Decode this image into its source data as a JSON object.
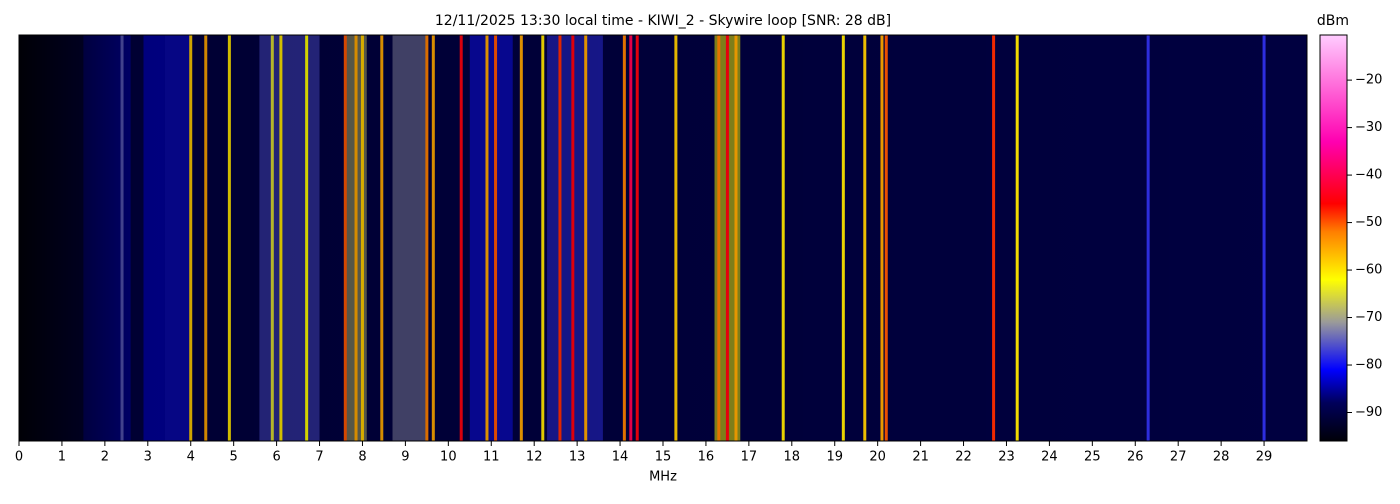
{
  "chart_data": {
    "type": "waterfall",
    "title": "12/11/2025 13:30 local time - KIWI_2 - Skywire loop [SNR: 28 dB]",
    "x_label": "MHz",
    "colorbar_label": "dBm",
    "xlim": [
      0,
      30
    ],
    "xticks": [
      0,
      1,
      2,
      3,
      4,
      5,
      6,
      7,
      8,
      9,
      10,
      11,
      12,
      13,
      14,
      15,
      16,
      17,
      18,
      19,
      20,
      21,
      22,
      23,
      24,
      25,
      26,
      27,
      28,
      29
    ],
    "clim": [
      -96,
      -10.5
    ],
    "cticks": [
      {
        "value": -20,
        "label": "−20"
      },
      {
        "value": -30,
        "label": "−30"
      },
      {
        "value": -40,
        "label": "−40"
      },
      {
        "value": -50,
        "label": "−50"
      },
      {
        "value": -60,
        "label": "−60"
      },
      {
        "value": -70,
        "label": "−70"
      },
      {
        "value": -80,
        "label": "−80"
      },
      {
        "value": -90,
        "label": "−90"
      }
    ],
    "colormap": [
      {
        "value": -96,
        "color": "#000008"
      },
      {
        "value": -88,
        "color": "#00005a"
      },
      {
        "value": -81,
        "color": "#0000ff"
      },
      {
        "value": -71,
        "color": "#9a9a9a"
      },
      {
        "value": -62,
        "color": "#ffff00"
      },
      {
        "value": -52,
        "color": "#ff8000"
      },
      {
        "value": -46,
        "color": "#ff0000"
      },
      {
        "value": -33,
        "color": "#ff00b0"
      },
      {
        "value": -10.5,
        "color": "#ffccff"
      }
    ],
    "bands": {
      "start": [
        1.5,
        2.9,
        3.4,
        5.6,
        7.6,
        8.7,
        10.5,
        12.3,
        16.2
      ],
      "end": [
        2.6,
        3.4,
        4.0,
        7.0,
        8.1,
        9.5,
        11.5,
        13.6,
        16.8
      ],
      "values": [
        -84,
        -82,
        -80,
        -76,
        -68,
        -72,
        -80,
        -78,
        -62
      ]
    },
    "signals": {
      "x": [
        2.4,
        4.0,
        4.35,
        4.9,
        5.9,
        6.1,
        6.7,
        7.6,
        7.85,
        8.0,
        8.45,
        9.5,
        9.65,
        10.3,
        10.9,
        11.1,
        11.7,
        12.2,
        12.6,
        12.9,
        13.2,
        14.1,
        14.25,
        14.4,
        15.3,
        16.3,
        16.5,
        16.7,
        17.8,
        19.2,
        19.7,
        20.1,
        20.2,
        22.7,
        23.25,
        26.3,
        29.0
      ],
      "values": [
        -75,
        -58,
        -55,
        -60,
        -65,
        -60,
        -62,
        -50,
        -55,
        -58,
        -55,
        -52,
        -55,
        -45,
        -55,
        -50,
        -55,
        -60,
        -48,
        -45,
        -55,
        -52,
        -40,
        -45,
        -58,
        -52,
        -45,
        -55,
        -60,
        -60,
        -58,
        -55,
        -50,
        -48,
        -60,
        -78,
        -78
      ]
    }
  }
}
